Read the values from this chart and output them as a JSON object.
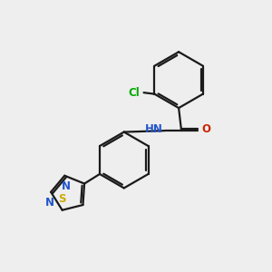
{
  "background_color": "#eeeeee",
  "bond_color": "#1a1a1a",
  "cl_color": "#00aa00",
  "n_color": "#2255cc",
  "o_color": "#cc2200",
  "s_color": "#ccaa00",
  "nh_color": "#2255cc",
  "figsize": [
    3.0,
    3.0
  ],
  "dpi": 100,
  "lw": 1.6,
  "xlim": [
    0,
    10
  ],
  "ylim": [
    0,
    10
  ]
}
